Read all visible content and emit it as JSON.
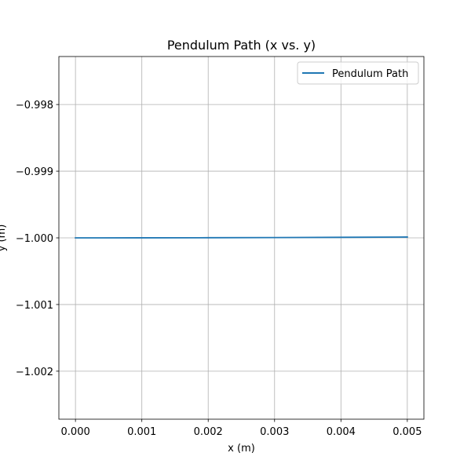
{
  "chart_data": {
    "type": "line",
    "title": "Pendulum Path (x vs. y)",
    "xlabel": "x (m)",
    "ylabel": "y (m)",
    "xlim": [
      -0.00025,
      0.00525
    ],
    "ylim": [
      -1.00272,
      -0.99728
    ],
    "xticks": [
      0.0,
      0.001,
      0.002,
      0.003,
      0.004,
      0.005
    ],
    "xtick_labels": [
      "0.000",
      "0.001",
      "0.002",
      "0.003",
      "0.004",
      "0.005"
    ],
    "yticks": [
      -0.998,
      -0.999,
      -1.0,
      -1.001,
      -1.002
    ],
    "ytick_labels": [
      "−0.998",
      "−0.999",
      "−1.000",
      "−1.001",
      "−1.002"
    ],
    "grid": true,
    "legend": {
      "position": "top-right"
    },
    "series": [
      {
        "name": "Pendulum Path",
        "color": "#1f77b4",
        "x": [
          0.0,
          0.001,
          0.002,
          0.003,
          0.004,
          0.005
        ],
        "y": [
          -1.0,
          -0.9999995,
          -0.999998,
          -0.9999955,
          -0.999992,
          -0.9999875
        ]
      }
    ]
  }
}
